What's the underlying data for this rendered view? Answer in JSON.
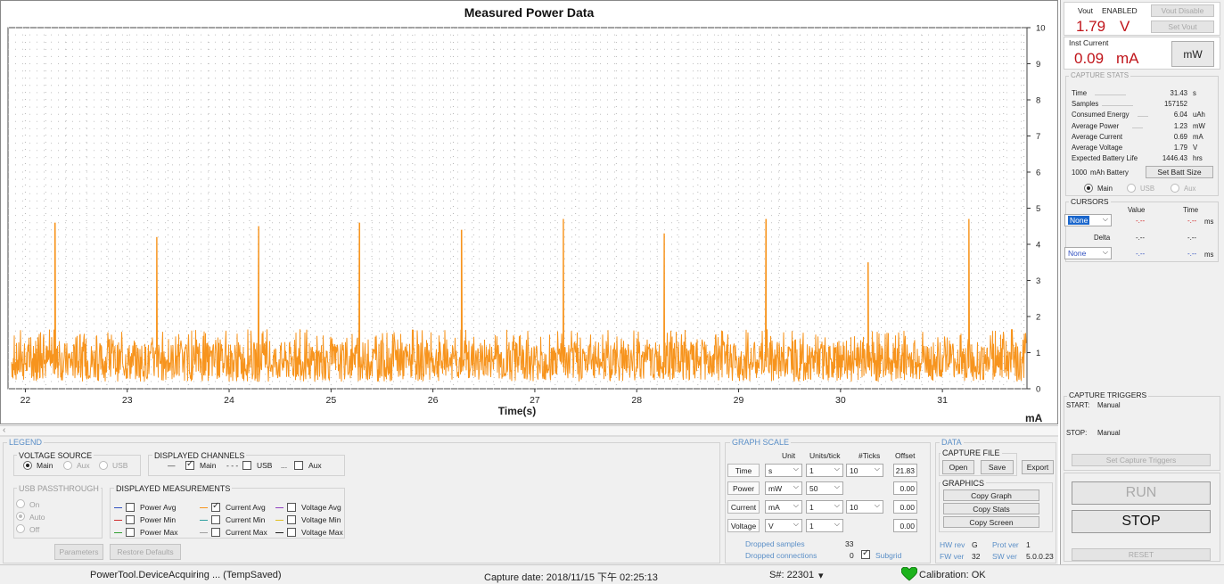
{
  "chart_data": {
    "type": "line",
    "title": "Measured Power Data",
    "xlabel": "Time(s)",
    "ylabel": "mA",
    "xlim": [
      21.83,
      31.83
    ],
    "ylim": [
      0,
      10
    ],
    "x_ticks": [
      22,
      23,
      24,
      25,
      26,
      27,
      28,
      29,
      30,
      31
    ],
    "y_ticks": [
      0,
      1,
      2,
      3,
      4,
      5,
      6,
      7,
      8,
      9,
      10
    ],
    "grid": "dotted",
    "series": [
      {
        "name": "Main current",
        "color": "#f7941d",
        "baseline_range": [
          0.2,
          1.3
        ],
        "spikes": [
          {
            "t": 22.29,
            "v": 4.6
          },
          {
            "t": 23.29,
            "v": 4.2
          },
          {
            "t": 24.29,
            "v": 4.5
          },
          {
            "t": 25.28,
            "v": 4.6
          },
          {
            "t": 26.28,
            "v": 4.4
          },
          {
            "t": 27.28,
            "v": 4.7
          },
          {
            "t": 28.27,
            "v": 4.3
          },
          {
            "t": 29.27,
            "v": 4.7
          },
          {
            "t": 30.27,
            "v": 3.5
          },
          {
            "t": 31.26,
            "v": 4.7
          }
        ]
      }
    ]
  },
  "legend": {
    "group_title": "LEGEND",
    "voltage_source": {
      "title": "VOLTAGE SOURCE",
      "main": "Main",
      "aux": "Aux",
      "usb": "USB"
    },
    "displayed_channels": {
      "title": "DISPLAYED CHANNELS",
      "main_style": "—",
      "main": "Main",
      "usb_style": "- - -",
      "usb": "USB",
      "aux_style": "...",
      "aux": "Aux"
    },
    "usb_passthrough": {
      "title": "USB PASSTHROUGH",
      "on": "On",
      "auto": "Auto",
      "off": "Off"
    },
    "displayed_measurements": {
      "title": "DISPLAYED MEASUREMENTS",
      "items": [
        {
          "label": "Power Avg",
          "color": "#3050c0",
          "checked": false
        },
        {
          "label": "Power Min",
          "color": "#d03030",
          "checked": false
        },
        {
          "label": "Power Max",
          "color": "#30a030",
          "checked": false
        },
        {
          "label": "Current Avg",
          "color": "#f7941d",
          "checked": true
        },
        {
          "label": "Current Min",
          "color": "#30a0a0",
          "checked": false
        },
        {
          "label": "Current Max",
          "color": "#a0a0a0",
          "checked": false
        },
        {
          "label": "Voltage Avg",
          "color": "#9040c0",
          "checked": false
        },
        {
          "label": "Voltage Min",
          "color": "#e0c020",
          "checked": false
        },
        {
          "label": "Voltage Max",
          "color": "#202020",
          "checked": false
        }
      ]
    },
    "parameters_button": "Parameters",
    "restore_button": "Restore Defaults"
  },
  "graph_scale": {
    "title": "GRAPH SCALE",
    "headers": {
      "unit": "Unit",
      "units_tick": "Units/tick",
      "ticks": "#Ticks",
      "offset": "Offset"
    },
    "rows": [
      {
        "label": "Time",
        "unit": "s",
        "units_tick": "1",
        "ticks": "10",
        "offset": "21.83"
      },
      {
        "label": "Power",
        "unit": "mW",
        "units_tick": "50",
        "ticks": "",
        "offset": "0.00"
      },
      {
        "label": "Current",
        "unit": "mA",
        "units_tick": "1",
        "ticks": "10",
        "offset": "0.00"
      },
      {
        "label": "Voltage",
        "unit": "V",
        "units_tick": "1",
        "ticks": "",
        "offset": "0.00"
      }
    ],
    "dropped_samples_label": "Dropped samples",
    "dropped_samples": "33",
    "dropped_connections_label": "Dropped connections",
    "dropped_connections": "0",
    "subgrid_label": "Subgrid"
  },
  "data_section": {
    "title": "DATA",
    "capture_file": {
      "title": "CAPTURE FILE",
      "open": "Open",
      "save": "Save",
      "export": "Export"
    },
    "graphics": {
      "title": "GRAPHICS",
      "copy_graph": "Copy Graph",
      "copy_stats": "Copy Stats",
      "copy_screen": "Copy Screen"
    },
    "hw_rev_label": "HW rev",
    "hw_rev": "G",
    "prot_ver_label": "Prot ver",
    "prot_ver": "1",
    "fw_ver_label": "FW ver",
    "fw_ver": "32",
    "sw_ver_label": "SW ver",
    "sw_ver": "5.0.0.23"
  },
  "vout": {
    "label": "Vout",
    "state": "ENABLED",
    "value": "1.79",
    "unit": "V",
    "disable_button": "Vout Disable",
    "set_button": "Set Vout"
  },
  "inst_current": {
    "label": "Inst Current",
    "value": "0.09",
    "unit": "mA",
    "mw_button": "mW"
  },
  "capture_stats": {
    "title": "CAPTURE STATS",
    "rows": [
      {
        "label": "Time",
        "value": "31.43",
        "unit": "s"
      },
      {
        "label": "Samples",
        "value": "157152",
        "unit": ""
      },
      {
        "label": "Consumed Energy",
        "value": "6.04",
        "unit": "uAh"
      },
      {
        "label": "Average Power",
        "value": "1.23",
        "unit": "mW"
      },
      {
        "label": "Average Current",
        "value": "0.69",
        "unit": "mA"
      },
      {
        "label": "Average Voltage",
        "value": "1.79",
        "unit": "V"
      },
      {
        "label": "Expected Battery Life",
        "value": "1446.43",
        "unit": "hrs"
      }
    ],
    "battery_capacity": "1000",
    "battery_label": "mAh Battery",
    "set_batt_button": "Set Batt Size",
    "source_main": "Main",
    "source_usb": "USB",
    "source_aux": "Aux"
  },
  "cursors": {
    "title": "CURSORS",
    "value_header": "Value",
    "time_header": "Time",
    "select1": "None",
    "select2": "None",
    "value1": "-.--",
    "time1": "-.--",
    "ms1": "ms",
    "delta_label": "Delta",
    "delta_value": "-.--",
    "delta_time": "-.--",
    "value2": "-.--",
    "time2": "-.--",
    "ms2": "ms"
  },
  "capture_triggers": {
    "title": "CAPTURE TRIGGERS",
    "start_label": "START:",
    "start_value": "Manual",
    "stop_label": "STOP:",
    "stop_value": "Manual",
    "set_button": "Set Capture Triggers"
  },
  "run_button": "RUN",
  "stop_button": "STOP",
  "reset_button": "RESET",
  "status": {
    "device": "PowerTool.DeviceAcquiring ... (TempSaved)",
    "capture_date": "Capture date: 2018/11/15 下午 02:25:13",
    "serial": "S#: 22301",
    "serial_arrow": "▾",
    "calibration": "Calibration: OK",
    "heart_color": "#1db31d"
  }
}
